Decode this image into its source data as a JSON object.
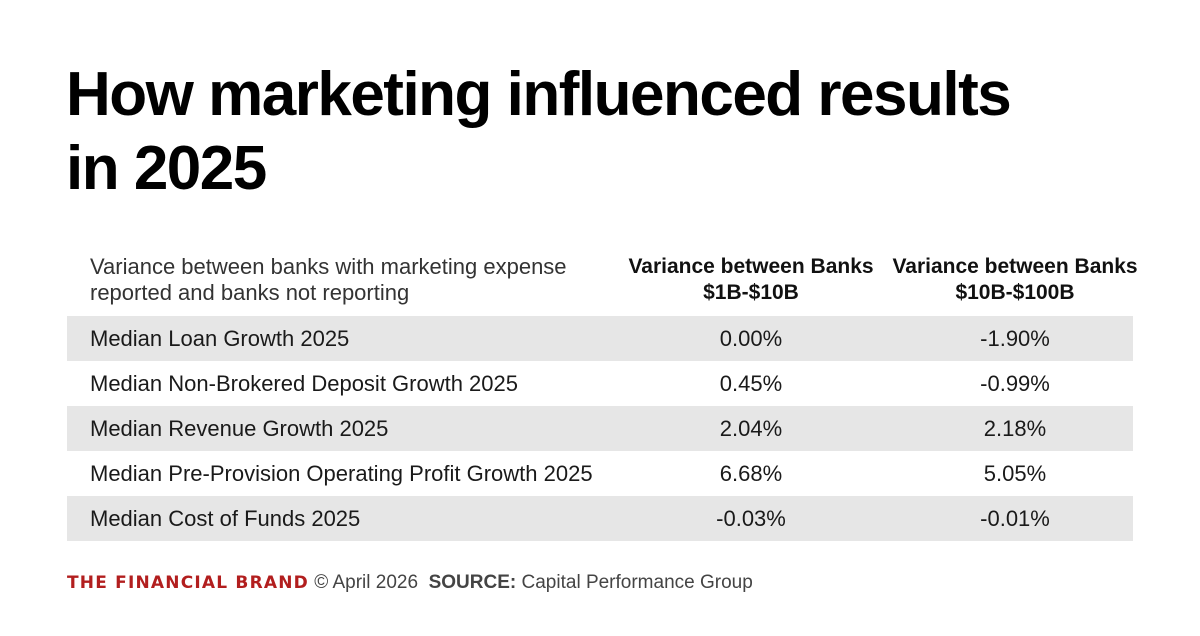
{
  "title": "How marketing influenced results in 2025",
  "chart_data": {
    "type": "table",
    "title": "How marketing influenced results in 2025",
    "row_header": "Variance between banks with marketing expense reported and banks not reporting",
    "columns": [
      "Variance between Banks $1B-$10B",
      "Variance between Banks $10B-$100B"
    ],
    "rows": [
      {
        "label": "Median Loan Growth 2025",
        "values": [
          "0.00%",
          "-1.90%"
        ]
      },
      {
        "label": "Median Non-Brokered Deposit Growth 2025",
        "values": [
          "0.45%",
          "-0.99%"
        ]
      },
      {
        "label": "Median Revenue Growth 2025",
        "values": [
          "2.04%",
          "2.18%"
        ]
      },
      {
        "label": "Median Pre-Provision Operating Profit Growth 2025",
        "values": [
          "6.68%",
          "5.05%"
        ]
      },
      {
        "label": "Median Cost of Funds 2025",
        "values": [
          "-0.03%",
          "-0.01%"
        ]
      }
    ]
  },
  "footer": {
    "brand": "THE FINANCIAL BRAND",
    "date": "© April 2026",
    "source_label": "SOURCE:",
    "source": "Capital Performance Group"
  },
  "colors": {
    "brand": "#b21e1e",
    "row_shade": "#e6e6e6"
  }
}
